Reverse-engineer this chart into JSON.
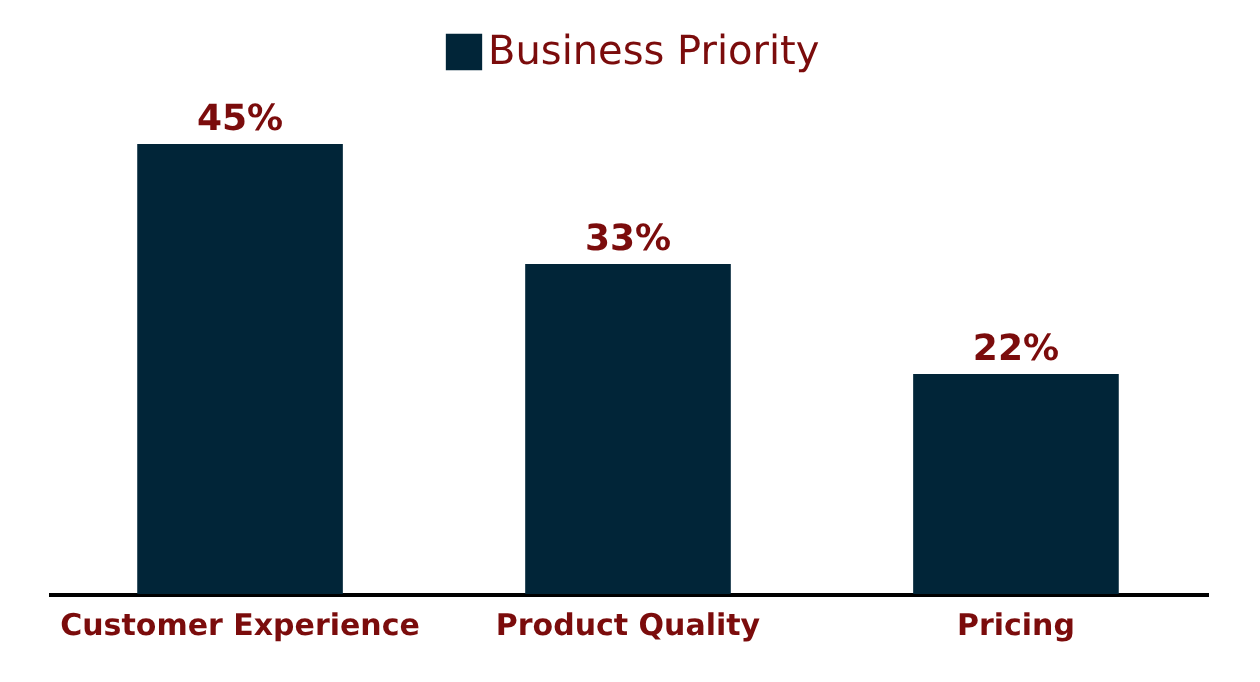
{
  "chart_data": {
    "type": "bar",
    "categories": [
      "Customer Experience",
      "Product Quality",
      "Pricing"
    ],
    "series": [
      {
        "name": "Business Priority",
        "color": "#012538",
        "values": [
          45,
          33,
          22
        ],
        "value_labels": [
          "45%",
          "33%",
          "22%"
        ]
      }
    ],
    "legend": "top",
    "grid": false
  }
}
